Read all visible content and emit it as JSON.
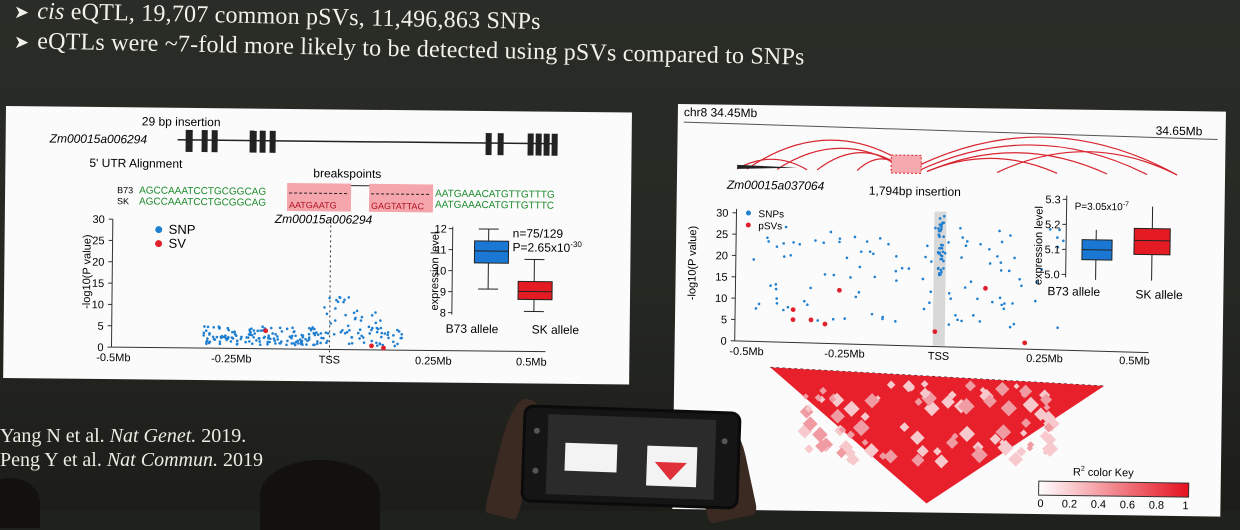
{
  "bullets": [
    {
      "prefix_italic": "cis",
      "text": " eQTL, 19,707 common pSVs, 11,496,863 SNPs"
    },
    {
      "text": "eQTLs were ~7-fold more likely to be detected using pSVs compared to SNPs"
    }
  ],
  "left_panel": {
    "insertion_label": "29 bp insertion",
    "gene_label": "Zm00015a006294",
    "utr_label": "5' UTR Alignment",
    "breakpoints_label": "breakspoints",
    "b73_prefix": "B73",
    "sk_prefix": "SK",
    "b73_seq_left": "AGCCAAATCCTGCGGCAG",
    "sk_seq_left": "AGCCAAATCCTGCGGCAG",
    "b73_seq_right": "AATGAAACATGTTGTTTG",
    "sk_seq_right": "AATGAAACATGTTGTTTC",
    "pink_box_sk_1": "AATGAATG",
    "pink_box_sk_2": "GAGTATTAC",
    "manhattan_gene_label": "Zm00015a006294",
    "y_axis_label": "-log10(P value)",
    "y_ticks": [
      "30",
      "25",
      "20",
      "15",
      "10",
      "5",
      "0"
    ],
    "x_ticks": [
      "-0.5Mb",
      "-0.25Mb",
      "TSS",
      "0.25Mb",
      "0.5Mb"
    ],
    "legend": [
      {
        "label": "SNP",
        "color": "#1f7fd0"
      },
      {
        "label": "SV",
        "color": "#e0202a"
      }
    ],
    "box_y_label": "expression level",
    "box_y_ticks": [
      "12",
      "11",
      "10",
      "9",
      "8"
    ],
    "box_n": "n=75/129",
    "box_p": "P=2.65x10",
    "box_p_exp": "-30",
    "box_categories": [
      "B73 allele",
      "SK allele"
    ],
    "box_colors": [
      "#1a78d4",
      "#e51b24"
    ]
  },
  "right_panel": {
    "chrom_start": "chr8 34.45Mb",
    "chrom_end": "34.65Mb",
    "gene_label": "Zm00015a037064",
    "insertion_label": "1,794bp insertion",
    "legend": [
      {
        "label": "SNPs",
        "color": "#1f7fd0"
      },
      {
        "label": "pSVs",
        "color": "#e0202a"
      }
    ],
    "y_axis_label": "-log10(P value)",
    "y_ticks": [
      "30",
      "25",
      "20",
      "15",
      "10",
      "5",
      "0"
    ],
    "x_ticks": [
      "-0.5Mb",
      "-0.25Mb",
      "TSS",
      "0.25Mb",
      "0.5Mb"
    ],
    "box_y_label": "expression level",
    "box_y_ticks": [
      "5.3",
      "5.2",
      "5.1",
      "5.0"
    ],
    "box_p": "P=3.05x10",
    "box_p_exp": "-7",
    "box_categories": [
      "B73 allele",
      "SK allele"
    ],
    "box_colors": [
      "#1a78d4",
      "#e51b24"
    ],
    "color_key_label": "R",
    "color_key_sup": "2",
    "color_key_suffix": " color Key",
    "color_key_ticks": [
      "0",
      "0.2",
      "0.4",
      "0.6",
      "0.8",
      "1"
    ]
  },
  "references": [
    {
      "author": "Yang N et al.",
      "journal": "Nat Genet.",
      "year": "2019."
    },
    {
      "author": "Peng Y et al.",
      "journal": "Nat Commun.",
      "year": "2019"
    }
  ]
}
